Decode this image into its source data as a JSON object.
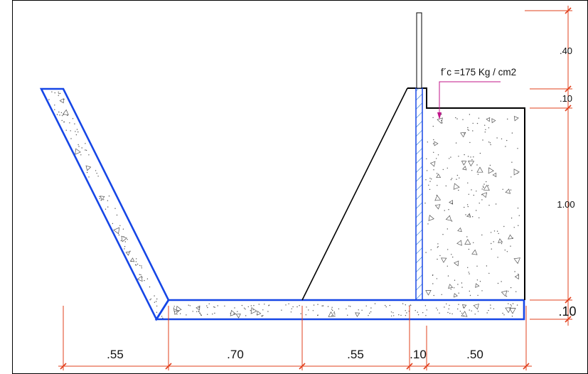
{
  "callout": {
    "label": "f´c =175 Kg / cm2"
  },
  "dimensions": {
    "bottom": [
      ".55",
      ".70",
      ".55",
      ".10",
      ".50"
    ],
    "right": [
      ".40",
      ".10",
      "1.00",
      ".10"
    ]
  },
  "colors": {
    "concrete_outline": "#1646e6",
    "dimension_line": "#e2401c",
    "callout_leader": "#c0158a",
    "profile_line": "#000000",
    "frame": "#000000",
    "hatch": "#1f6fd1"
  }
}
